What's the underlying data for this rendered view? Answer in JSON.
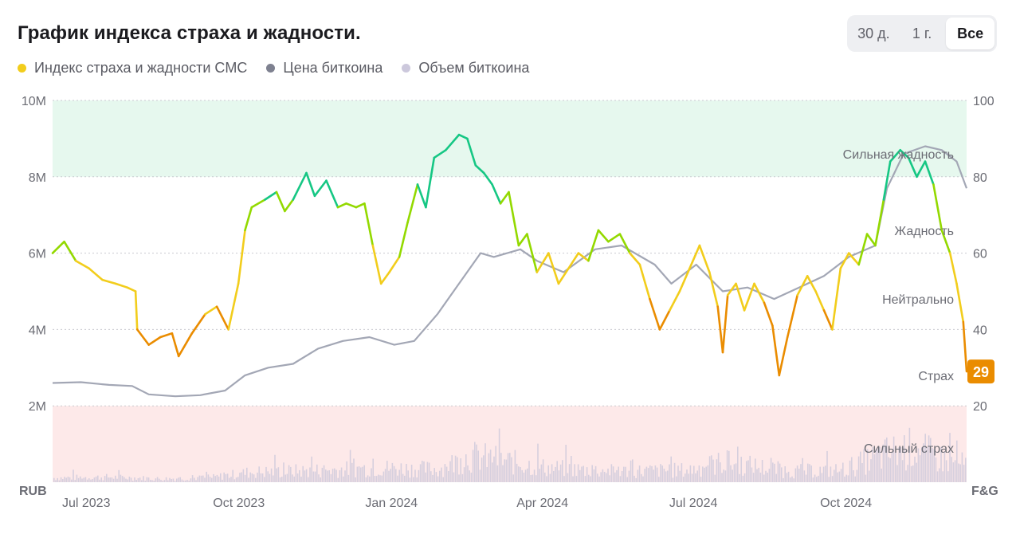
{
  "header": {
    "title": "График индекса страха и жадности.",
    "ranges": [
      {
        "label": "30 д.",
        "active": false
      },
      {
        "label": "1 г.",
        "active": false
      },
      {
        "label": "Все",
        "active": true
      }
    ]
  },
  "legend": [
    {
      "label": "Индекс страха и жадности CMC",
      "color": "#f2cd1c"
    },
    {
      "label": "Цена биткоина",
      "color": "#7e8190"
    },
    {
      "label": "Объем биткоина",
      "color": "#ccc8dc"
    }
  ],
  "colors": {
    "extreme_greed_zone": "#e6f8ee",
    "extreme_fear_zone": "#fde9e9",
    "line_extreme_greed": "#16c784",
    "line_greed": "#93d900",
    "line_neutral": "#f2cd1c",
    "line_fear": "#ea8c00",
    "line_extreme_fear": "#ea3943",
    "price_line": "#a3a7b5",
    "volume_bars": "#d6cfde",
    "current_badge": "#ea8c00"
  },
  "chart_data": {
    "type": "line",
    "x_ticks": [
      "Jul 2023",
      "Oct 2023",
      "Jan 2024",
      "Apr 2024",
      "Jul 2024",
      "Oct 2024"
    ],
    "left_axis": {
      "unit": "RUB",
      "ticks": [
        "2M",
        "4M",
        "6M",
        "8M",
        "10M"
      ],
      "range": [
        0,
        10000000
      ]
    },
    "right_axis": {
      "unit": "F&G",
      "ticks": [
        "20",
        "40",
        "60",
        "80",
        "100"
      ],
      "range": [
        0,
        100
      ]
    },
    "zones": [
      "Сильная жадность",
      "Жадность",
      "Нейтрально",
      "Страх",
      "Сильный страх"
    ],
    "current_value": "29",
    "x_range": [
      "2023-06-28",
      "2024-12-30"
    ],
    "fear_greed_index": [
      [
        "2023-06-28",
        60
      ],
      [
        "2023-07-05",
        63
      ],
      [
        "2023-07-12",
        58
      ],
      [
        "2023-07-20",
        56
      ],
      [
        "2023-07-28",
        53
      ],
      [
        "2023-08-05",
        52
      ],
      [
        "2023-08-12",
        51
      ],
      [
        "2023-08-17",
        50
      ],
      [
        "2023-08-18",
        40
      ],
      [
        "2023-08-25",
        36
      ],
      [
        "2023-09-01",
        38
      ],
      [
        "2023-09-08",
        39
      ],
      [
        "2023-09-12",
        33
      ],
      [
        "2023-09-20",
        39
      ],
      [
        "2023-09-28",
        44
      ],
      [
        "2023-10-05",
        46
      ],
      [
        "2023-10-12",
        40
      ],
      [
        "2023-10-18",
        52
      ],
      [
        "2023-10-22",
        66
      ],
      [
        "2023-10-26",
        72
      ],
      [
        "2023-11-03",
        74
      ],
      [
        "2023-11-10",
        76
      ],
      [
        "2023-11-15",
        71
      ],
      [
        "2023-11-20",
        74
      ],
      [
        "2023-11-28",
        81
      ],
      [
        "2023-12-03",
        75
      ],
      [
        "2023-12-10",
        79
      ],
      [
        "2023-12-17",
        72
      ],
      [
        "2023-12-22",
        73
      ],
      [
        "2023-12-28",
        72
      ],
      [
        "2024-01-02",
        73
      ],
      [
        "2024-01-07",
        62
      ],
      [
        "2024-01-12",
        52
      ],
      [
        "2024-01-17",
        55
      ],
      [
        "2024-01-23",
        59
      ],
      [
        "2024-01-28",
        68
      ],
      [
        "2024-02-03",
        78
      ],
      [
        "2024-02-08",
        72
      ],
      [
        "2024-02-13",
        85
      ],
      [
        "2024-02-20",
        87
      ],
      [
        "2024-02-28",
        91
      ],
      [
        "2024-03-04",
        90
      ],
      [
        "2024-03-09",
        83
      ],
      [
        "2024-03-14",
        81
      ],
      [
        "2024-03-19",
        78
      ],
      [
        "2024-03-24",
        73
      ],
      [
        "2024-03-29",
        76
      ],
      [
        "2024-04-04",
        62
      ],
      [
        "2024-04-09",
        65
      ],
      [
        "2024-04-15",
        55
      ],
      [
        "2024-04-22",
        60
      ],
      [
        "2024-04-28",
        52
      ],
      [
        "2024-05-04",
        56
      ],
      [
        "2024-05-10",
        60
      ],
      [
        "2024-05-16",
        58
      ],
      [
        "2024-05-22",
        66
      ],
      [
        "2024-05-28",
        63
      ],
      [
        "2024-06-04",
        65
      ],
      [
        "2024-06-10",
        60
      ],
      [
        "2024-06-16",
        57
      ],
      [
        "2024-06-22",
        48
      ],
      [
        "2024-06-28",
        40
      ],
      [
        "2024-07-04",
        45
      ],
      [
        "2024-07-10",
        50
      ],
      [
        "2024-07-16",
        56
      ],
      [
        "2024-07-22",
        62
      ],
      [
        "2024-07-28",
        55
      ],
      [
        "2024-08-02",
        46
      ],
      [
        "2024-08-05",
        34
      ],
      [
        "2024-08-08",
        49
      ],
      [
        "2024-08-13",
        52
      ],
      [
        "2024-08-18",
        45
      ],
      [
        "2024-08-24",
        52
      ],
      [
        "2024-08-30",
        47
      ],
      [
        "2024-09-04",
        41
      ],
      [
        "2024-09-08",
        28
      ],
      [
        "2024-09-13",
        38
      ],
      [
        "2024-09-19",
        49
      ],
      [
        "2024-09-25",
        54
      ],
      [
        "2024-09-30",
        50
      ],
      [
        "2024-10-05",
        45
      ],
      [
        "2024-10-10",
        40
      ],
      [
        "2024-10-15",
        56
      ],
      [
        "2024-10-20",
        60
      ],
      [
        "2024-10-26",
        57
      ],
      [
        "2024-10-31",
        65
      ],
      [
        "2024-11-05",
        62
      ],
      [
        "2024-11-10",
        74
      ],
      [
        "2024-11-14",
        84
      ],
      [
        "2024-11-20",
        87
      ],
      [
        "2024-11-25",
        85
      ],
      [
        "2024-11-30",
        80
      ],
      [
        "2024-12-05",
        84
      ],
      [
        "2024-12-10",
        78
      ],
      [
        "2024-12-15",
        66
      ],
      [
        "2024-12-20",
        60
      ],
      [
        "2024-12-24",
        52
      ],
      [
        "2024-12-28",
        42
      ],
      [
        "2024-12-30",
        29
      ]
    ],
    "btc_price_rub": [
      [
        "2023-06-28",
        2600000
      ],
      [
        "2023-07-15",
        2620000
      ],
      [
        "2023-08-01",
        2550000
      ],
      [
        "2023-08-15",
        2520000
      ],
      [
        "2023-08-25",
        2300000
      ],
      [
        "2023-09-10",
        2250000
      ],
      [
        "2023-09-25",
        2280000
      ],
      [
        "2023-10-10",
        2400000
      ],
      [
        "2023-10-22",
        2800000
      ],
      [
        "2023-11-05",
        3000000
      ],
      [
        "2023-11-20",
        3100000
      ],
      [
        "2023-12-05",
        3500000
      ],
      [
        "2023-12-20",
        3700000
      ],
      [
        "2024-01-05",
        3800000
      ],
      [
        "2024-01-20",
        3600000
      ],
      [
        "2024-02-01",
        3700000
      ],
      [
        "2024-02-15",
        4400000
      ],
      [
        "2024-02-28",
        5200000
      ],
      [
        "2024-03-12",
        6000000
      ],
      [
        "2024-03-20",
        5900000
      ],
      [
        "2024-04-05",
        6100000
      ],
      [
        "2024-04-15",
        5800000
      ],
      [
        "2024-05-01",
        5500000
      ],
      [
        "2024-05-20",
        6100000
      ],
      [
        "2024-06-05",
        6200000
      ],
      [
        "2024-06-25",
        5700000
      ],
      [
        "2024-07-05",
        5200000
      ],
      [
        "2024-07-20",
        5700000
      ],
      [
        "2024-08-05",
        5000000
      ],
      [
        "2024-08-20",
        5100000
      ],
      [
        "2024-09-05",
        4800000
      ],
      [
        "2024-09-20",
        5100000
      ],
      [
        "2024-10-05",
        5400000
      ],
      [
        "2024-10-20",
        5900000
      ],
      [
        "2024-11-05",
        6200000
      ],
      [
        "2024-11-12",
        7700000
      ],
      [
        "2024-11-22",
        8600000
      ],
      [
        "2024-12-05",
        8800000
      ],
      [
        "2024-12-15",
        8700000
      ],
      [
        "2024-12-24",
        8400000
      ],
      [
        "2024-12-30",
        7700000
      ]
    ],
    "btc_volume_rub": [
      [
        "2023-06-28",
        150000
      ],
      [
        "2023-08-01",
        180000
      ],
      [
        "2023-09-01",
        120000
      ],
      [
        "2023-10-01",
        160000
      ],
      [
        "2023-10-25",
        350000
      ],
      [
        "2023-12-01",
        400000
      ],
      [
        "2024-01-10",
        500000
      ],
      [
        "2024-02-15",
        450000
      ],
      [
        "2024-03-05",
        900000
      ],
      [
        "2024-03-20",
        800000
      ],
      [
        "2024-04-20",
        500000
      ],
      [
        "2024-06-01",
        380000
      ],
      [
        "2024-07-15",
        420000
      ],
      [
        "2024-08-05",
        700000
      ],
      [
        "2024-09-15",
        380000
      ],
      [
        "2024-10-15",
        420000
      ],
      [
        "2024-11-12",
        1000000
      ],
      [
        "2024-11-28",
        1200000
      ],
      [
        "2024-12-15",
        800000
      ],
      [
        "2024-12-30",
        600000
      ]
    ]
  }
}
